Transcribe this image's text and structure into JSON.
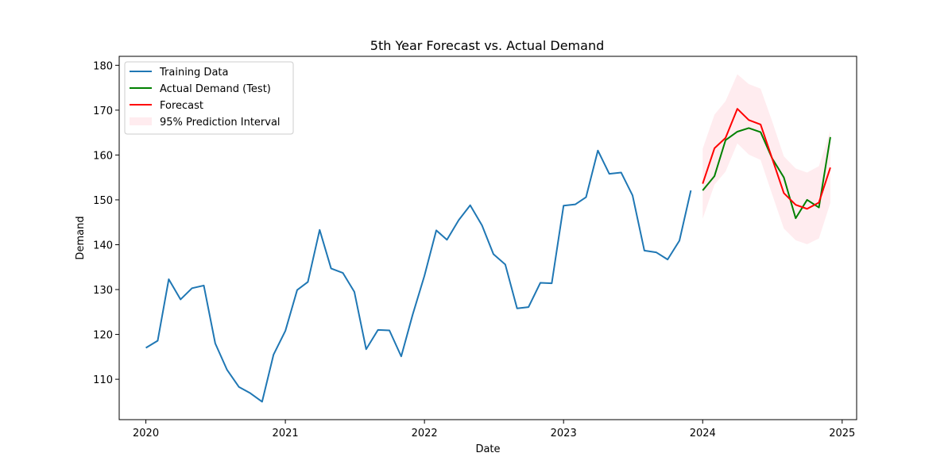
{
  "chart_data": {
    "type": "line",
    "title": "5th Year Forecast vs. Actual Demand",
    "xlabel": "Date",
    "ylabel": "Demand",
    "x_axis": "date",
    "xlim": [
      "2019-10-23",
      "2025-02-08"
    ],
    "ylim": [
      101.0,
      182.0
    ],
    "x_ticks": [
      {
        "date": "2020-01-01",
        "label": "2020"
      },
      {
        "date": "2021-01-01",
        "label": "2021"
      },
      {
        "date": "2022-01-01",
        "label": "2022"
      },
      {
        "date": "2023-01-01",
        "label": "2023"
      },
      {
        "date": "2024-01-01",
        "label": "2024"
      },
      {
        "date": "2025-01-01",
        "label": "2025"
      }
    ],
    "y_ticks": [
      110,
      120,
      130,
      140,
      150,
      160,
      170,
      180
    ],
    "grid": false,
    "legend_position": "top-left",
    "series": [
      {
        "name": "Training Data",
        "color": "#1f77b4",
        "kind": "line",
        "x": [
          "2020-01",
          "2020-02",
          "2020-03",
          "2020-04",
          "2020-05",
          "2020-06",
          "2020-07",
          "2020-08",
          "2020-09",
          "2020-10",
          "2020-11",
          "2020-12",
          "2021-01",
          "2021-02",
          "2021-03",
          "2021-04",
          "2021-05",
          "2021-06",
          "2021-07",
          "2021-08",
          "2021-09",
          "2021-10",
          "2021-11",
          "2021-12",
          "2022-01",
          "2022-02",
          "2022-03",
          "2022-04",
          "2022-05",
          "2022-06",
          "2022-07",
          "2022-08",
          "2022-09",
          "2022-10",
          "2022-11",
          "2022-12",
          "2023-01",
          "2023-02",
          "2023-03",
          "2023-04",
          "2023-05",
          "2023-06",
          "2023-07",
          "2023-08",
          "2023-09",
          "2023-10",
          "2023-11",
          "2023-12"
        ],
        "y": [
          117.0,
          118.6,
          132.3,
          127.8,
          130.3,
          130.9,
          118.0,
          112.1,
          108.3,
          106.9,
          105.0,
          115.5,
          120.8,
          129.9,
          131.7,
          143.3,
          134.7,
          133.7,
          129.5,
          116.7,
          121.0,
          120.9,
          115.1,
          124.4,
          133.1,
          143.2,
          141.1,
          145.5,
          148.8,
          144.3,
          137.9,
          135.6,
          125.8,
          126.1,
          131.5,
          131.4,
          148.7,
          149.0,
          150.6,
          161.0,
          155.8,
          156.1,
          151.0,
          138.7,
          138.3,
          136.7,
          140.9,
          152.1
        ]
      },
      {
        "name": "Actual Demand (Test)",
        "color": "#008000",
        "kind": "line",
        "x": [
          "2024-01",
          "2024-02",
          "2024-03",
          "2024-04",
          "2024-05",
          "2024-06",
          "2024-07",
          "2024-08",
          "2024-09",
          "2024-10",
          "2024-11",
          "2024-12"
        ],
        "y": [
          152.1,
          155.3,
          163.3,
          165.2,
          166.0,
          165.1,
          159.3,
          155.0,
          145.9,
          150.0,
          148.3,
          164.0
        ]
      },
      {
        "name": "Forecast",
        "color": "#ff0000",
        "kind": "line",
        "x": [
          "2024-01",
          "2024-02",
          "2024-03",
          "2024-04",
          "2024-05",
          "2024-06",
          "2024-07",
          "2024-08",
          "2024-09",
          "2024-10",
          "2024-11",
          "2024-12"
        ],
        "y": [
          153.6,
          161.5,
          163.8,
          170.3,
          167.8,
          166.8,
          159.3,
          151.5,
          148.9,
          148.0,
          149.4,
          157.2
        ]
      },
      {
        "name": "95% Prediction Interval",
        "color": "#ffc0cb",
        "kind": "band",
        "x": [
          "2024-01",
          "2024-02",
          "2024-03",
          "2024-04",
          "2024-05",
          "2024-06",
          "2024-07",
          "2024-08",
          "2024-09",
          "2024-10",
          "2024-11",
          "2024-12"
        ],
        "lower": [
          145.8,
          153.4,
          156.3,
          162.6,
          160.1,
          158.9,
          151.3,
          143.6,
          141.0,
          140.1,
          141.4,
          149.3
        ],
        "upper": [
          161.4,
          169.0,
          172.0,
          178.0,
          175.8,
          174.8,
          167.6,
          159.7,
          157.0,
          156.1,
          157.5,
          165.4
        ]
      }
    ]
  }
}
